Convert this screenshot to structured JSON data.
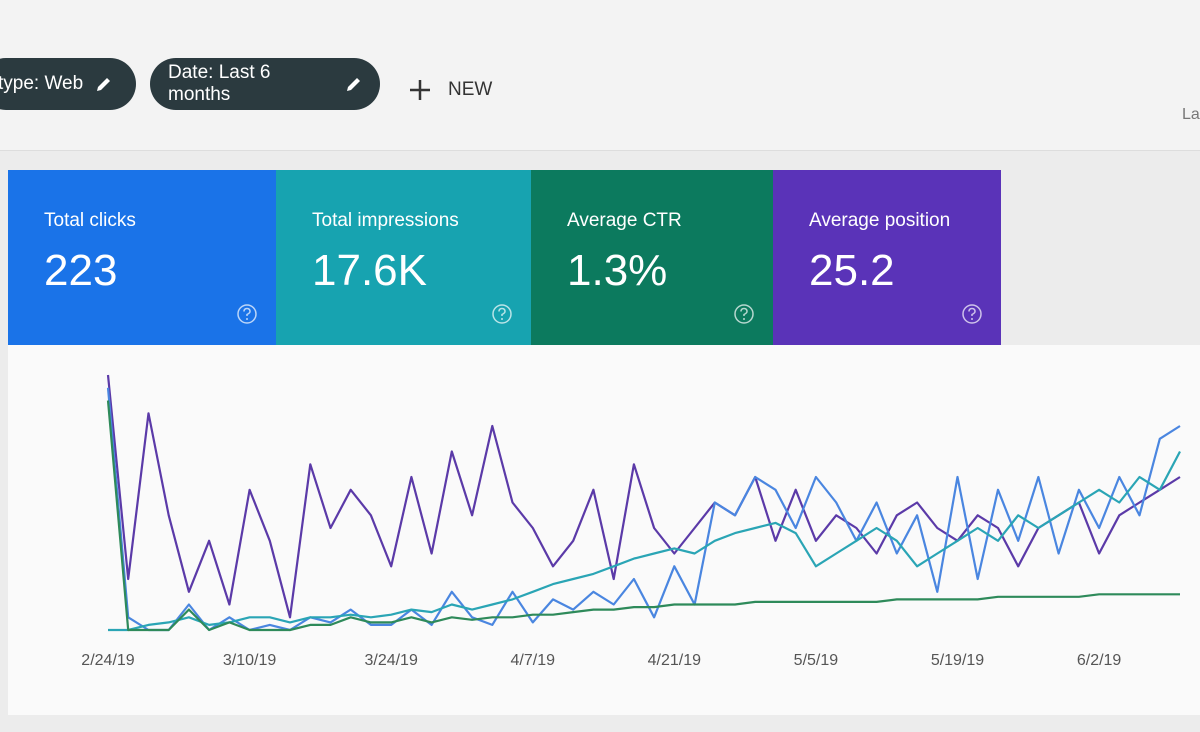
{
  "filters": [
    "type: Web",
    "Date: Last 6 months"
  ],
  "new_button": "NEW",
  "corner_text": "La",
  "metrics": [
    {
      "title": "Total clicks",
      "value": "223",
      "color": "#1a73e8"
    },
    {
      "title": "Total impressions",
      "value": "17.6K",
      "color": "#17a3b0"
    },
    {
      "title": "Average CTR",
      "value": "1.3%",
      "color": "#0c7a5e"
    },
    {
      "title": "Average position",
      "value": "25.2",
      "color": "#5a33b8"
    }
  ],
  "chart_data": {
    "type": "line",
    "xticks": [
      "2/24/19",
      "3/10/19",
      "3/24/19",
      "4/7/19",
      "4/21/19",
      "5/5/19",
      "5/19/19",
      "6/2/19"
    ],
    "series": [
      {
        "color": "#5b3aa8",
        "values": [
          100,
          20,
          85,
          45,
          15,
          35,
          10,
          55,
          35,
          5,
          65,
          40,
          55,
          45,
          25,
          60,
          30,
          70,
          45,
          80,
          50,
          40,
          25,
          35,
          55,
          20,
          65,
          40,
          30,
          40,
          50,
          45,
          60,
          35,
          55,
          35,
          45,
          40,
          30,
          45,
          50,
          40,
          35,
          45,
          40,
          25,
          40,
          45,
          50,
          30,
          45,
          50,
          55,
          60
        ]
      },
      {
        "color": "#4a86e0",
        "values": [
          95,
          5,
          0,
          0,
          10,
          0,
          5,
          0,
          2,
          0,
          5,
          3,
          8,
          2,
          2,
          8,
          2,
          15,
          5,
          2,
          15,
          3,
          12,
          8,
          15,
          10,
          20,
          5,
          25,
          10,
          50,
          45,
          60,
          55,
          40,
          60,
          50,
          35,
          50,
          30,
          45,
          15,
          60,
          20,
          55,
          35,
          60,
          30,
          55,
          40,
          60,
          45,
          75,
          80
        ]
      },
      {
        "color": "#2aa5b5",
        "values": [
          0,
          0,
          2,
          3,
          5,
          2,
          3,
          5,
          5,
          3,
          5,
          5,
          6,
          5,
          6,
          8,
          7,
          10,
          8,
          10,
          12,
          15,
          18,
          20,
          22,
          25,
          28,
          30,
          32,
          30,
          35,
          38,
          40,
          42,
          38,
          25,
          30,
          35,
          40,
          35,
          25,
          30,
          35,
          40,
          35,
          45,
          40,
          45,
          50,
          55,
          50,
          60,
          55,
          70
        ]
      },
      {
        "color": "#2e8a5a",
        "values": [
          90,
          0,
          0,
          0,
          8,
          0,
          3,
          0,
          0,
          0,
          2,
          2,
          5,
          3,
          3,
          5,
          3,
          5,
          4,
          5,
          5,
          6,
          6,
          7,
          8,
          8,
          9,
          9,
          10,
          10,
          10,
          10,
          11,
          11,
          11,
          11,
          11,
          11,
          11,
          12,
          12,
          12,
          12,
          12,
          13,
          13,
          13,
          13,
          13,
          14,
          14,
          14,
          14,
          14
        ]
      }
    ]
  }
}
